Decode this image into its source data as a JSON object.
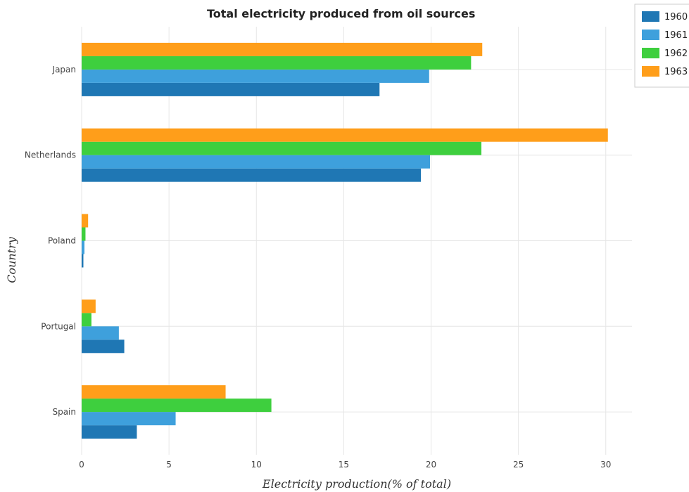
{
  "chart_data": {
    "type": "bar",
    "orientation": "horizontal",
    "title": "Total electricity produced from oil sources",
    "xlabel": "Electricity production(% of total)",
    "ylabel": "Country",
    "categories": [
      "Japan",
      "Netherlands",
      "Poland",
      "Portugal",
      "Spain"
    ],
    "series": [
      {
        "name": "1960",
        "color": "#1f77b4",
        "values": [
          17.05,
          19.42,
          0.1,
          2.44,
          3.16
        ]
      },
      {
        "name": "1961",
        "color": "#3ea0dc",
        "values": [
          19.89,
          19.94,
          0.16,
          2.13,
          5.38
        ]
      },
      {
        "name": "1962",
        "color": "#3ecf3e",
        "values": [
          22.29,
          22.88,
          0.22,
          0.56,
          10.86
        ]
      },
      {
        "name": "1963",
        "color": "#ff9e1a",
        "values": [
          22.93,
          30.12,
          0.37,
          0.8,
          8.24
        ]
      }
    ],
    "xlim": [
      0,
      31.5
    ],
    "xticks": [
      0,
      5,
      10,
      15,
      20,
      25,
      30
    ],
    "grid": true,
    "legend_position": "top-right"
  }
}
